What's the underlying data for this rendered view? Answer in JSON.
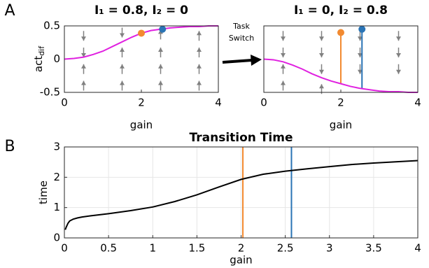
{
  "panel_labels": [
    "A",
    "B"
  ],
  "annotation": [
    "Task",
    "Switch"
  ],
  "chart_data": [
    {
      "type": "line",
      "title": "I₁ = 0.8, I₂ = 0",
      "xlabel": "gain",
      "ylabel": "act",
      "ylabel_subscript": "dif",
      "xlim": [
        0,
        4
      ],
      "xticks": [
        0,
        2,
        4
      ],
      "ylim": [
        -0.5,
        0.5
      ],
      "yticks": [
        -0.5,
        0,
        0.5
      ],
      "grid": false,
      "x": [
        0,
        0.25,
        0.5,
        0.75,
        1,
        1.25,
        1.5,
        1.75,
        2,
        2.25,
        2.5,
        2.75,
        3,
        3.25,
        3.5,
        3.75,
        4
      ],
      "series": [
        {
          "color": "#e021e0",
          "values": [
            0,
            0.01,
            0.03,
            0.07,
            0.12,
            0.19,
            0.26,
            0.33,
            0.39,
            0.43,
            0.45,
            0.47,
            0.48,
            0.49,
            0.49,
            0.5,
            0.5
          ]
        }
      ],
      "points": [
        {
          "x": 2,
          "y": 0.39,
          "color": "#f28a30"
        },
        {
          "x": 2.55,
          "y": 0.45,
          "color": "#2a74b5"
        }
      ],
      "quiver": {
        "color": "#808080",
        "x": [
          0.5,
          0.5,
          0.5,
          0.5,
          1.5,
          1.5,
          1.5,
          1.5,
          2.5,
          2.5,
          2.5,
          2.5,
          3.5,
          3.5,
          3.5,
          3.5
        ],
        "y": [
          0.35,
          0.1,
          -0.15,
          -0.4,
          0.4,
          0.1,
          -0.15,
          -0.4,
          0.37,
          0.1,
          -0.15,
          -0.4,
          0.35,
          0.1,
          -0.15,
          -0.4
        ],
        "direction": [
          -1,
          -1,
          1,
          1,
          -1,
          1,
          1,
          1,
          1,
          1,
          1,
          1,
          1,
          1,
          1,
          1
        ]
      }
    },
    {
      "type": "line",
      "title": "I₁ = 0, I₂ = 0.8",
      "xlabel": "gain",
      "xlim": [
        0,
        4
      ],
      "xticks": [
        0,
        2,
        4
      ],
      "ylim": [
        -0.5,
        0.5
      ],
      "grid": false,
      "x": [
        0,
        0.25,
        0.5,
        0.75,
        1,
        1.25,
        1.5,
        1.75,
        2,
        2.25,
        2.5,
        2.75,
        3,
        3.25,
        3.5,
        3.75,
        4
      ],
      "series": [
        {
          "color": "#e021e0",
          "values": [
            0,
            -0.01,
            -0.04,
            -0.09,
            -0.15,
            -0.22,
            -0.28,
            -0.33,
            -0.37,
            -0.41,
            -0.44,
            -0.46,
            -0.48,
            -0.49,
            -0.49,
            -0.5,
            -0.5
          ]
        }
      ],
      "vlines": [
        {
          "x": 2,
          "y": [
            -0.37,
            0.4
          ],
          "color": "#f28a30",
          "marker": true
        },
        {
          "x": 2.55,
          "y": [
            -0.44,
            0.45
          ],
          "color": "#2a74b5",
          "marker": true
        }
      ],
      "quiver": {
        "color": "#808080",
        "x": [
          0.5,
          0.5,
          0.5,
          0.5,
          1.5,
          1.5,
          1.5,
          1.5,
          2.5,
          2.5,
          2.5,
          3.5,
          3.5,
          3.5
        ],
        "y": [
          0.35,
          0.1,
          -0.15,
          -0.4,
          0.35,
          0.1,
          -0.15,
          -0.45,
          0.35,
          0.1,
          -0.15,
          0.35,
          0.1,
          -0.15
        ],
        "direction": [
          -1,
          -1,
          1,
          1,
          -1,
          -1,
          -1,
          1,
          -1,
          -1,
          -1,
          -1,
          -1,
          -1
        ]
      }
    },
    {
      "type": "line",
      "title": "Transition Time",
      "xlabel": "gain",
      "ylabel": "time",
      "xlim": [
        0,
        4
      ],
      "xticks": [
        0,
        0.5,
        1,
        1.5,
        2,
        2.5,
        3,
        3.5,
        4
      ],
      "ylim": [
        0,
        3
      ],
      "yticks": [
        0,
        1,
        2,
        3
      ],
      "grid": true,
      "x": [
        0.01,
        0.02,
        0.04,
        0.06,
        0.1,
        0.15,
        0.2,
        0.3,
        0.5,
        0.75,
        1,
        1.25,
        1.5,
        1.75,
        2,
        2.25,
        2.5,
        2.75,
        3,
        3.25,
        3.5,
        3.75,
        4
      ],
      "series": [
        {
          "color": "#000000",
          "values": [
            0.27,
            0.35,
            0.48,
            0.56,
            0.62,
            0.66,
            0.69,
            0.73,
            0.8,
            0.9,
            1.02,
            1.2,
            1.42,
            1.68,
            1.93,
            2.1,
            2.2,
            2.28,
            2.35,
            2.42,
            2.47,
            2.51,
            2.55
          ]
        }
      ],
      "vlines": [
        {
          "x": 2.02,
          "color": "#f28a30"
        },
        {
          "x": 2.57,
          "color": "#2a74b5"
        }
      ]
    }
  ]
}
